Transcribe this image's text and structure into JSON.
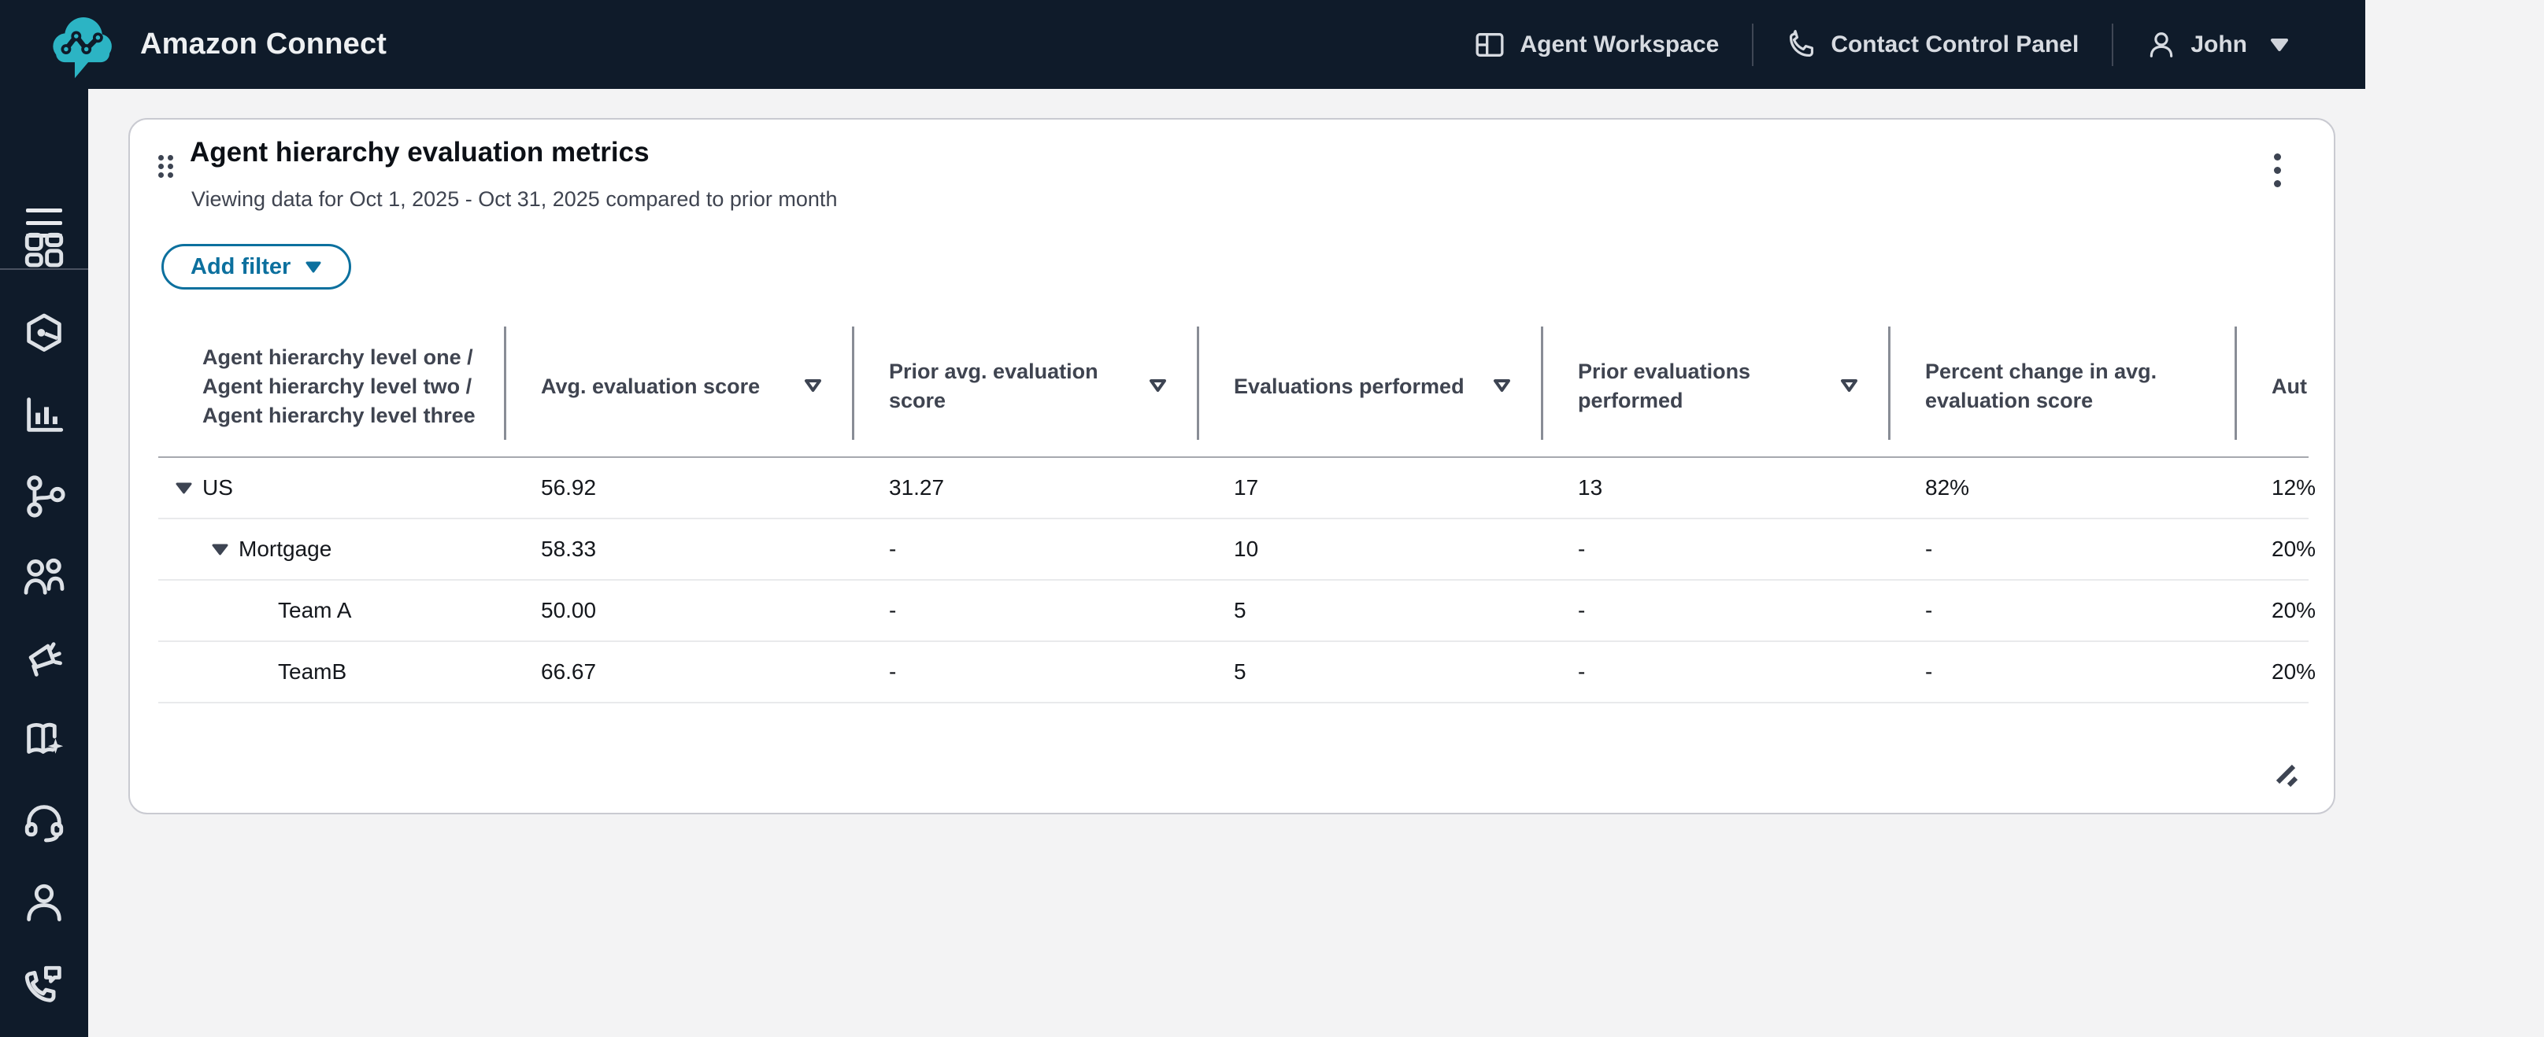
{
  "topbar": {
    "brand": "Amazon Connect",
    "items": [
      {
        "icon": "workspace-icon",
        "label": "Agent Workspace"
      },
      {
        "icon": "phone-icon",
        "label": "Contact Control Panel"
      },
      {
        "icon": "user-icon",
        "label": "John",
        "caret": "down"
      }
    ]
  },
  "sidebar": {
    "menu_icon": "hamburger-icon",
    "items": [
      {
        "icon": "grid"
      },
      {
        "icon": "hexagon-node"
      },
      {
        "icon": "bar-chart"
      },
      {
        "icon": "branch"
      },
      {
        "icon": "users"
      },
      {
        "icon": "megaphone"
      },
      {
        "icon": "book-sparkle"
      },
      {
        "icon": "headset"
      },
      {
        "icon": "person"
      },
      {
        "icon": "phone-chat"
      }
    ]
  },
  "widget": {
    "title": "Agent hierarchy evaluation metrics",
    "subtitle": "Viewing data for Oct 1, 2025 - Oct 31, 2025 compared to prior month",
    "add_filter_label": "Add filter",
    "table": {
      "columns": [
        {
          "label": "Agent hierarchy level one / Agent hierarchy level two / Agent hierarchy level three",
          "sortable": false
        },
        {
          "label": "Avg. evaluation score",
          "sortable": true
        },
        {
          "label": "Prior avg. evaluation score",
          "sortable": true
        },
        {
          "label": "Evaluations performed",
          "sortable": true
        },
        {
          "label": "Prior evaluations performed",
          "sortable": true
        },
        {
          "label": "Percent change in avg. evaluation score",
          "sortable": false
        },
        {
          "label": "Aut",
          "sortable": false,
          "clipped": true
        }
      ],
      "rows": [
        {
          "level": 1,
          "expandable": true,
          "name": "US",
          "values": [
            "56.92",
            "31.27",
            "17",
            "13",
            "82%",
            "12%"
          ]
        },
        {
          "level": 2,
          "expandable": true,
          "name": "Mortgage",
          "values": [
            "58.33",
            "-",
            "10",
            "-",
            "-",
            "20%"
          ]
        },
        {
          "level": 3,
          "expandable": false,
          "name": "Team A",
          "values": [
            "50.00",
            "-",
            "5",
            "-",
            "-",
            "20%"
          ]
        },
        {
          "level": 3,
          "expandable": false,
          "name": "TeamB",
          "values": [
            "66.67",
            "-",
            "5",
            "-",
            "-",
            "20%"
          ]
        }
      ]
    }
  },
  "colors": {
    "topbar_bg": "#0f1b2a",
    "logo_teal": "#2cb4c4",
    "accent_teal": "#0c709e",
    "main_bg": "#f3f3f4",
    "card_border": "#c9cad1",
    "header_text": "#3f4450",
    "body_text": "#14171c",
    "column_divider": "#898d96",
    "row_divider": "#e9eaec"
  }
}
